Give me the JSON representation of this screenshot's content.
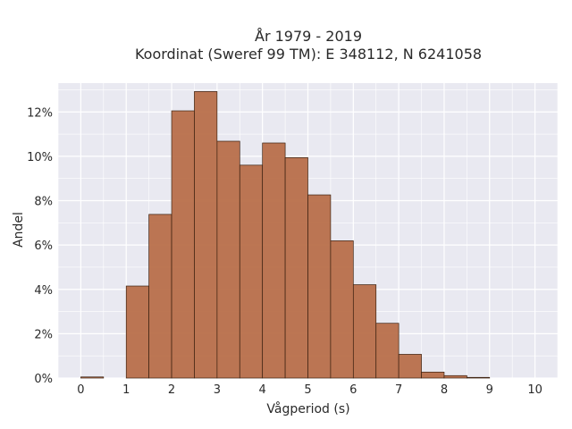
{
  "chart_data": {
    "type": "bar",
    "title": "År 1979 - 2019",
    "subtitle": "Koordinat (Sweref 99 TM): E 348112, N 6241058",
    "xlabel": "Vågperiod (s)",
    "ylabel": "Andel",
    "xlim": [
      -0.5,
      10.5
    ],
    "ylim": [
      0,
      0.133
    ],
    "x_ticks": [
      0,
      1,
      2,
      3,
      4,
      5,
      6,
      7,
      8,
      9,
      10
    ],
    "x_tick_labels": [
      "0",
      "1",
      "2",
      "3",
      "4",
      "5",
      "6",
      "7",
      "8",
      "9",
      "10"
    ],
    "y_ticks": [
      0,
      0.02,
      0.04,
      0.06,
      0.08,
      0.1,
      0.12
    ],
    "y_tick_labels": [
      "0%",
      "2%",
      "4%",
      "6%",
      "8%",
      "10%",
      "12%"
    ],
    "bin_width": 0.5,
    "bin_starts": [
      0,
      0.5,
      1,
      1.5,
      2,
      2.5,
      3,
      3.5,
      4,
      4.5,
      5,
      5.5,
      6,
      6.5,
      7,
      7.5,
      8,
      8.5,
      9,
      9.5
    ],
    "values": [
      0.0005,
      0.0,
      0.0415,
      0.0738,
      0.1205,
      0.1292,
      0.1068,
      0.096,
      0.106,
      0.0994,
      0.0826,
      0.0619,
      0.0421,
      0.0247,
      0.0107,
      0.0027,
      0.0011,
      0.0003,
      0.0,
      0.0
    ],
    "bar_color": "#b86f4a",
    "bar_edge_color": "#3a2010",
    "background_color": "#e9e9f1",
    "grid": true,
    "grid_color": "#ffffff"
  }
}
